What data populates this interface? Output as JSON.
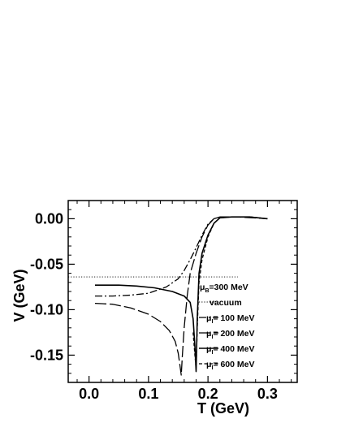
{
  "chart_data": {
    "type": "line",
    "xlabel": "T (GeV)",
    "ylabel": "V (GeV)",
    "xlim": [
      -0.035,
      0.35
    ],
    "ylim": [
      -0.18,
      0.02
    ],
    "xticks": [
      "0.0",
      "0.1",
      "0.2",
      "0.3"
    ],
    "yticks": [
      "0.00",
      "-0.05",
      "-0.10",
      "-0.15"
    ],
    "legend_title": "μB=300 MeV",
    "series": [
      {
        "name": "vacuum",
        "legend_main": "vacuum",
        "style": "dotted",
        "points": [
          [
            -0.035,
            -0.064
          ],
          [
            0.25,
            -0.064
          ]
        ]
      },
      {
        "name": "μI= 100 MeV",
        "legend_prefix": "μ",
        "legend_sub": "I",
        "legend_rest": "= 100 MeV",
        "style": "dashdot",
        "points": [
          [
            0.01,
            -0.085
          ],
          [
            0.04,
            -0.085
          ],
          [
            0.07,
            -0.084
          ],
          [
            0.1,
            -0.082
          ],
          [
            0.13,
            -0.075
          ],
          [
            0.15,
            -0.066
          ],
          [
            0.16,
            -0.057
          ],
          [
            0.17,
            -0.045
          ],
          [
            0.18,
            -0.032
          ],
          [
            0.19,
            -0.018
          ],
          [
            0.2,
            -0.006
          ],
          [
            0.21,
            0.0
          ],
          [
            0.22,
            0.002
          ],
          [
            0.24,
            0.002
          ],
          [
            0.27,
            0.002
          ],
          [
            0.3,
            0.0
          ]
        ]
      },
      {
        "name": "μI= 200 MeV",
        "legend_prefix": "μ",
        "legend_sub": "I",
        "legend_rest": "= 200 MeV",
        "style": "longdash",
        "points": [
          [
            0.01,
            -0.093
          ],
          [
            0.04,
            -0.094
          ],
          [
            0.07,
            -0.098
          ],
          [
            0.1,
            -0.105
          ],
          [
            0.12,
            -0.113
          ],
          [
            0.135,
            -0.123
          ],
          [
            0.145,
            -0.135
          ],
          [
            0.15,
            -0.148
          ],
          [
            0.153,
            -0.162
          ],
          [
            0.155,
            -0.172
          ],
          [
            0.157,
            -0.15
          ],
          [
            0.16,
            -0.12
          ],
          [
            0.165,
            -0.085
          ],
          [
            0.17,
            -0.06
          ],
          [
            0.18,
            -0.038
          ],
          [
            0.19,
            -0.02
          ],
          [
            0.2,
            -0.007
          ],
          [
            0.21,
            0.0
          ],
          [
            0.22,
            0.002
          ],
          [
            0.25,
            0.002
          ],
          [
            0.3,
            0.0
          ]
        ]
      },
      {
        "name": "μI= 400 MeV",
        "legend_prefix": "μ",
        "legend_sub": "I",
        "legend_rest": "= 400 MeV",
        "style": "solid",
        "points": [
          [
            0.01,
            -0.073
          ],
          [
            0.05,
            -0.073
          ],
          [
            0.08,
            -0.074
          ],
          [
            0.11,
            -0.076
          ],
          [
            0.14,
            -0.08
          ],
          [
            0.16,
            -0.085
          ],
          [
            0.17,
            -0.092
          ],
          [
            0.175,
            -0.11
          ],
          [
            0.178,
            -0.14
          ],
          [
            0.18,
            -0.168
          ],
          [
            0.182,
            -0.11
          ],
          [
            0.185,
            -0.06
          ],
          [
            0.19,
            -0.038
          ],
          [
            0.2,
            -0.018
          ],
          [
            0.21,
            -0.005
          ],
          [
            0.22,
            0.001
          ],
          [
            0.24,
            0.002
          ],
          [
            0.27,
            0.002
          ],
          [
            0.3,
            0.0
          ]
        ]
      },
      {
        "name": "μI= 600 MeV",
        "legend_prefix": "μ",
        "legend_sub": "I",
        "legend_rest": "= 600 MeV",
        "style": "shortdash",
        "points": [
          [
            0.175,
            -0.125
          ],
          [
            0.178,
            -0.15
          ],
          [
            0.18,
            -0.165
          ],
          [
            0.182,
            -0.12
          ],
          [
            0.185,
            -0.07
          ],
          [
            0.19,
            -0.045
          ],
          [
            0.2,
            -0.02
          ],
          [
            0.21,
            -0.005
          ],
          [
            0.22,
            0.001
          ],
          [
            0.24,
            0.002
          ],
          [
            0.27,
            0.002
          ],
          [
            0.3,
            0.0
          ]
        ]
      }
    ]
  }
}
